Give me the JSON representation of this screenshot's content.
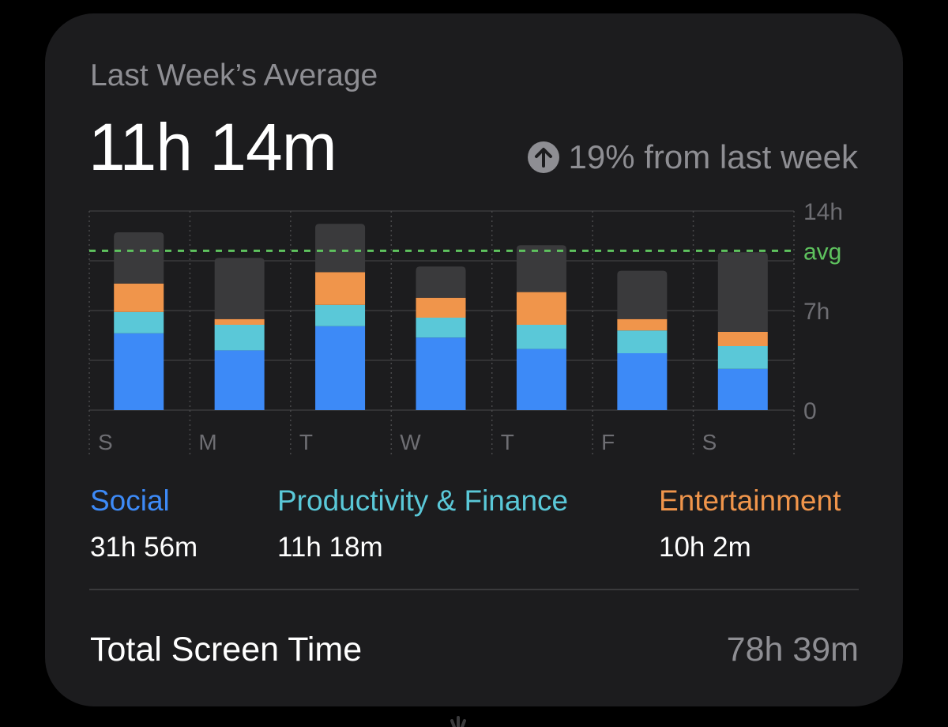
{
  "header": {
    "title": "Last Week’s Average",
    "total": "11h 14m",
    "change_text": "19% from last week",
    "change_icon": "arrow-up-circle-icon"
  },
  "colors": {
    "card": "#1c1c1e",
    "social": "#3d8af7",
    "productivity": "#5ac8d8",
    "entertainment": "#f0954b",
    "other": "#3a3a3c",
    "avg": "#5ec25e",
    "muted": "#8e8e93"
  },
  "chart_data": {
    "type": "bar",
    "stacked": true,
    "categories": [
      "S",
      "M",
      "T",
      "W",
      "T",
      "F",
      "S"
    ],
    "ylim": [
      0,
      14
    ],
    "y_ticks": [
      "14h",
      "7h",
      "0"
    ],
    "avg_label": "avg",
    "avg_value": 11.2,
    "grid": true,
    "series": [
      {
        "name": "Social",
        "values": [
          5.4,
          4.2,
          5.9,
          5.1,
          4.3,
          4.0,
          2.9
        ]
      },
      {
        "name": "Productivity & Finance",
        "values": [
          1.5,
          1.8,
          1.5,
          1.4,
          1.7,
          1.6,
          1.6
        ]
      },
      {
        "name": "Entertainment",
        "values": [
          2.0,
          0.4,
          2.3,
          1.4,
          2.3,
          0.8,
          1.0
        ]
      },
      {
        "values": [
          3.6,
          4.3,
          3.4,
          2.2,
          3.3,
          3.4,
          5.6
        ]
      }
    ]
  },
  "legend": [
    {
      "name": "Social",
      "value": "31h 56m",
      "color": "#3d8af7"
    },
    {
      "name": "Productivity & Finance",
      "value": "11h 18m",
      "color": "#5ac8d8"
    },
    {
      "name": "Entertainment",
      "value": "10h 2m",
      "color": "#f0954b"
    }
  ],
  "footer": {
    "label": "Total Screen Time",
    "value": "78h 39m"
  }
}
